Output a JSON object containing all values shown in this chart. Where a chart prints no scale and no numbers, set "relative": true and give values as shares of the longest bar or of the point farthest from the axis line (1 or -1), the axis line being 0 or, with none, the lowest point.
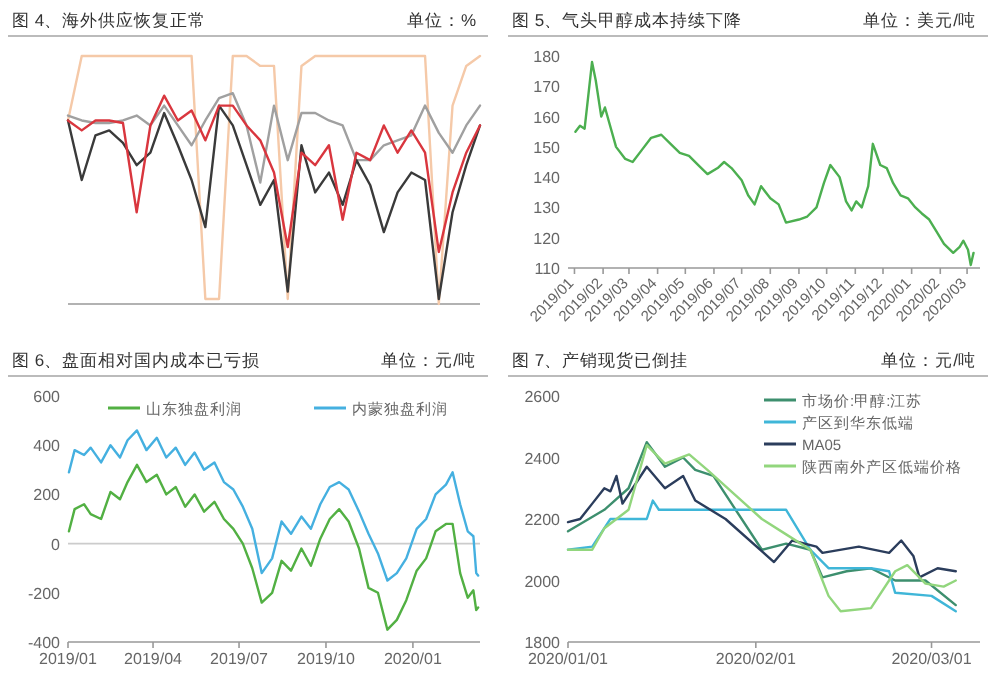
{
  "chart_data": [
    {
      "type": "line",
      "title": "图 4、海外供应恢复正常",
      "subtitle": "单位：%",
      "relative": true,
      "categories": [
        null,
        null,
        null,
        null,
        null,
        null,
        null,
        null,
        null,
        null,
        null,
        null,
        null,
        null,
        null,
        null,
        null,
        null,
        null,
        null,
        null,
        null,
        null,
        null,
        null,
        null,
        null,
        null,
        null,
        null,
        null
      ],
      "series": [
        {
          "color": "#f5c9a8",
          "values": [
            0.74,
            1,
            1,
            1,
            1,
            1,
            1,
            1,
            1,
            1,
            0.02,
            0.02,
            1,
            1,
            0.96,
            0.96,
            0.02,
            0.96,
            1,
            1,
            1,
            1,
            1,
            1,
            1,
            1,
            1,
            0,
            0.8,
            0.96,
            1
          ]
        },
        {
          "color": "#a0a0a0",
          "values": [
            0.76,
            0.74,
            0.73,
            0.73,
            0.74,
            0.76,
            0.72,
            0.8,
            0.72,
            0.64,
            0.74,
            0.83,
            0.85,
            0.72,
            0.49,
            0.8,
            0.58,
            0.77,
            0.77,
            0.74,
            0.72,
            0.58,
            0.58,
            0.64,
            0.66,
            0.68,
            0.8,
            0.69,
            0.61,
            0.72,
            0.8
          ]
        },
        {
          "color": "#3a3a3a",
          "values": [
            0.74,
            0.5,
            0.68,
            0.7,
            0.65,
            0.56,
            0.61,
            0.77,
            0.64,
            0.5,
            0.31,
            0.8,
            0.72,
            0.56,
            0.4,
            0.5,
            0.05,
            0.64,
            0.45,
            0.53,
            0.4,
            0.58,
            0.48,
            0.29,
            0.45,
            0.53,
            0.5,
            0.02,
            0.37,
            0.56,
            0.72
          ]
        },
        {
          "color": "#d9363e",
          "values": [
            0.74,
            0.7,
            0.74,
            0.74,
            0.73,
            0.37,
            0.72,
            0.84,
            0.74,
            0.78,
            0.66,
            0.8,
            0.8,
            0.72,
            0.66,
            0.53,
            0.23,
            0.61,
            0.56,
            0.64,
            0.34,
            0.61,
            0.58,
            0.72,
            0.61,
            0.7,
            0.61,
            0.21,
            0.45,
            0.61,
            0.72
          ]
        }
      ]
    },
    {
      "type": "line",
      "title": "图 5、气头甲醇成本持续下降",
      "subtitle": "单位：美元/吨",
      "xlim": [
        "2018-12-25",
        "2020-03-15"
      ],
      "ylim": [
        110,
        180
      ],
      "yticks": [
        110,
        120,
        130,
        140,
        150,
        160,
        170,
        180
      ],
      "xticks": [
        {
          "value": "2019-01-01",
          "label": "2019/01"
        },
        {
          "value": "2019-02-01",
          "label": "2019/02"
        },
        {
          "value": "2019-03-01",
          "label": "2019/03"
        },
        {
          "value": "2019-04-01",
          "label": "2019/04"
        },
        {
          "value": "2019-05-01",
          "label": "2019/05"
        },
        {
          "value": "2019-06-01",
          "label": "2019/06"
        },
        {
          "value": "2019-07-01",
          "label": "2019/07"
        },
        {
          "value": "2019-08-01",
          "label": "2019/08"
        },
        {
          "value": "2019-09-01",
          "label": "2019/09"
        },
        {
          "value": "2019-10-01",
          "label": "2019/10"
        },
        {
          "value": "2019-11-01",
          "label": "2019/11"
        },
        {
          "value": "2019-12-01",
          "label": "2019/12"
        },
        {
          "value": "2020-01-01",
          "label": "2020/01"
        },
        {
          "value": "2020-02-01",
          "label": "2020/02"
        },
        {
          "value": "2020-03-01",
          "label": "2020/03"
        }
      ],
      "x": [
        "2019-01-02",
        "2019-01-07",
        "2019-01-12",
        "2019-01-20",
        "2019-01-24",
        "2019-01-30",
        "2019-02-03",
        "2019-02-15",
        "2019-02-25",
        "2019-03-05",
        "2019-03-15",
        "2019-03-25",
        "2019-04-05",
        "2019-04-15",
        "2019-04-25",
        "2019-05-05",
        "2019-05-15",
        "2019-05-25",
        "2019-06-05",
        "2019-06-12",
        "2019-06-20",
        "2019-07-01",
        "2019-07-08",
        "2019-07-15",
        "2019-07-22",
        "2019-08-01",
        "2019-08-10",
        "2019-08-18",
        "2019-09-01",
        "2019-09-10",
        "2019-09-20",
        "2019-09-28",
        "2019-10-05",
        "2019-10-15",
        "2019-10-22",
        "2019-10-28",
        "2019-11-02",
        "2019-11-08",
        "2019-11-15",
        "2019-11-20",
        "2019-11-28",
        "2019-12-05",
        "2019-12-12",
        "2019-12-20",
        "2019-12-28",
        "2020-01-05",
        "2020-01-12",
        "2020-01-20",
        "2020-01-28",
        "2020-02-05",
        "2020-02-15",
        "2020-02-22",
        "2020-02-26",
        "2020-03-02",
        "2020-03-05",
        "2020-03-08"
      ],
      "series": [
        {
          "color": "#4caf50",
          "values": [
            155,
            157,
            156,
            178,
            172,
            160,
            163,
            150,
            146,
            145,
            149,
            153,
            154,
            151,
            148,
            147,
            144,
            141,
            143,
            145,
            143,
            139,
            134,
            131,
            137,
            133,
            131,
            125,
            126,
            127,
            130,
            138,
            144,
            140,
            132,
            129,
            132,
            130,
            137,
            151,
            144,
            143,
            138,
            134,
            133,
            130,
            128,
            126,
            122,
            118,
            115,
            117,
            119,
            116,
            111,
            115
          ]
        }
      ]
    },
    {
      "type": "line",
      "title": "图 6、盘面相对国内成本已亏损",
      "subtitle": "单位：元/吨",
      "legend": "top",
      "xlim": [
        "2019-01-01",
        "2020-03-12"
      ],
      "ylim": [
        -400,
        600
      ],
      "yticks": [
        -400,
        -200,
        0,
        200,
        400,
        600
      ],
      "xticks": [
        {
          "value": "2019-01-01",
          "label": "2019/01"
        },
        {
          "value": "2019-04-01",
          "label": "2019/04"
        },
        {
          "value": "2019-07-01",
          "label": "2019/07"
        },
        {
          "value": "2019-10-01",
          "label": "2019/10"
        },
        {
          "value": "2020-01-01",
          "label": "2020/01"
        }
      ],
      "ref_lines": [
        {
          "axis": "y",
          "value": 0,
          "color": "#cccccc"
        }
      ],
      "x": [
        "2019-01-02",
        "2019-01-08",
        "2019-01-18",
        "2019-01-25",
        "2019-02-05",
        "2019-02-15",
        "2019-02-25",
        "2019-03-05",
        "2019-03-15",
        "2019-03-25",
        "2019-04-05",
        "2019-04-15",
        "2019-04-25",
        "2019-05-05",
        "2019-05-15",
        "2019-05-25",
        "2019-06-05",
        "2019-06-15",
        "2019-06-25",
        "2019-07-05",
        "2019-07-15",
        "2019-07-25",
        "2019-08-05",
        "2019-08-15",
        "2019-08-25",
        "2019-09-05",
        "2019-09-15",
        "2019-09-25",
        "2019-10-05",
        "2019-10-15",
        "2019-10-25",
        "2019-11-05",
        "2019-11-15",
        "2019-11-25",
        "2019-12-05",
        "2019-12-15",
        "2019-12-25",
        "2020-01-05",
        "2020-01-15",
        "2020-01-25",
        "2020-02-05",
        "2020-02-12",
        "2020-02-20",
        "2020-02-28",
        "2020-03-05",
        "2020-03-08",
        "2020-03-10"
      ],
      "series": [
        {
          "name": "山东独盘利润",
          "color": "#52b043",
          "values": [
            50,
            140,
            160,
            120,
            100,
            210,
            180,
            250,
            320,
            250,
            280,
            200,
            230,
            150,
            200,
            130,
            170,
            100,
            60,
            0,
            -100,
            -240,
            -200,
            -70,
            -110,
            -20,
            -90,
            20,
            100,
            140,
            90,
            -20,
            -180,
            -200,
            -350,
            -310,
            -230,
            -110,
            -60,
            50,
            80,
            80,
            -120,
            -220,
            -190,
            -270,
            -260
          ]
        },
        {
          "name": "内蒙独盘利润",
          "color": "#45b0e0",
          "values": [
            290,
            380,
            360,
            390,
            330,
            400,
            350,
            420,
            460,
            380,
            430,
            350,
            390,
            320,
            370,
            300,
            330,
            250,
            220,
            150,
            60,
            -120,
            -60,
            90,
            40,
            110,
            60,
            160,
            230,
            250,
            220,
            130,
            40,
            -40,
            -150,
            -120,
            -60,
            60,
            100,
            200,
            240,
            290,
            160,
            50,
            30,
            -120,
            -130
          ]
        }
      ]
    },
    {
      "type": "line",
      "title": "图 7、产销现货已倒挂",
      "subtitle": "单位：元/吨",
      "legend": "top right",
      "xlim": [
        "2020-01-01",
        "2020-03-09"
      ],
      "ylim": [
        1800,
        2600
      ],
      "yticks": [
        1800,
        2000,
        2200,
        2400,
        2600
      ],
      "xticks": [
        {
          "value": "2020-01-01",
          "label": "2020/01/01"
        },
        {
          "value": "2020-02-01",
          "label": "2020/02/01"
        },
        {
          "value": "2020-03-01",
          "label": "2020/03/01"
        }
      ],
      "series": [
        {
          "name": "市场价:甲醇:江苏",
          "color": "#3d8f6e",
          "x": [
            "2020-01-01",
            "2020-01-07",
            "2020-01-11",
            "2020-01-14",
            "2020-01-17",
            "2020-01-20",
            "2020-01-22",
            "2020-01-25",
            "2020-02-02",
            "2020-02-06",
            "2020-02-10",
            "2020-02-12",
            "2020-02-16",
            "2020-02-20",
            "2020-02-24",
            "2020-02-29",
            "2020-03-05"
          ],
          "values": [
            2160,
            2230,
            2300,
            2450,
            2370,
            2400,
            2360,
            2340,
            2100,
            2120,
            2100,
            2010,
            2030,
            2040,
            2000,
            2000,
            1920
          ]
        },
        {
          "name": "产区到华东低端",
          "color": "#3fb6d8",
          "x": [
            "2020-01-01",
            "2020-01-05",
            "2020-01-08",
            "2020-01-14",
            "2020-01-15",
            "2020-01-16",
            "2020-02-06",
            "2020-02-10",
            "2020-02-13",
            "2020-02-20",
            "2020-02-23",
            "2020-02-24",
            "2020-03-01",
            "2020-03-05"
          ],
          "values": [
            2100,
            2110,
            2200,
            2200,
            2260,
            2230,
            2230,
            2100,
            2040,
            2040,
            2030,
            1960,
            1950,
            1900
          ]
        },
        {
          "name": "MA05",
          "color": "#2b3d5c",
          "x": [
            "2020-01-01",
            "2020-01-03",
            "2020-01-05",
            "2020-01-07",
            "2020-01-08",
            "2020-01-09",
            "2020-01-10",
            "2020-01-14",
            "2020-01-17",
            "2020-01-20",
            "2020-01-22",
            "2020-01-27",
            "2020-02-04",
            "2020-02-07",
            "2020-02-11",
            "2020-02-12",
            "2020-02-18",
            "2020-02-23",
            "2020-02-25",
            "2020-02-27",
            "2020-02-28",
            "2020-03-02",
            "2020-03-05"
          ],
          "values": [
            2190,
            2200,
            2250,
            2300,
            2290,
            2340,
            2250,
            2370,
            2300,
            2340,
            2260,
            2200,
            2060,
            2130,
            2110,
            2090,
            2110,
            2090,
            2130,
            2080,
            2010,
            2040,
            2030
          ]
        },
        {
          "name": "陕西南外产区低端价格",
          "color": "#92d67d",
          "x": [
            "2020-01-01",
            "2020-01-05",
            "2020-01-07",
            "2020-01-11",
            "2020-01-14",
            "2020-01-17",
            "2020-01-21",
            "2020-01-24",
            "2020-02-02",
            "2020-02-06",
            "2020-02-10",
            "2020-02-13",
            "2020-02-15",
            "2020-02-20",
            "2020-02-24",
            "2020-02-26",
            "2020-02-29",
            "2020-03-03",
            "2020-03-05"
          ],
          "values": [
            2100,
            2100,
            2170,
            2230,
            2440,
            2380,
            2410,
            2360,
            2200,
            2150,
            2100,
            1950,
            1900,
            1910,
            2030,
            2050,
            1990,
            1980,
            2000
          ]
        }
      ]
    }
  ]
}
